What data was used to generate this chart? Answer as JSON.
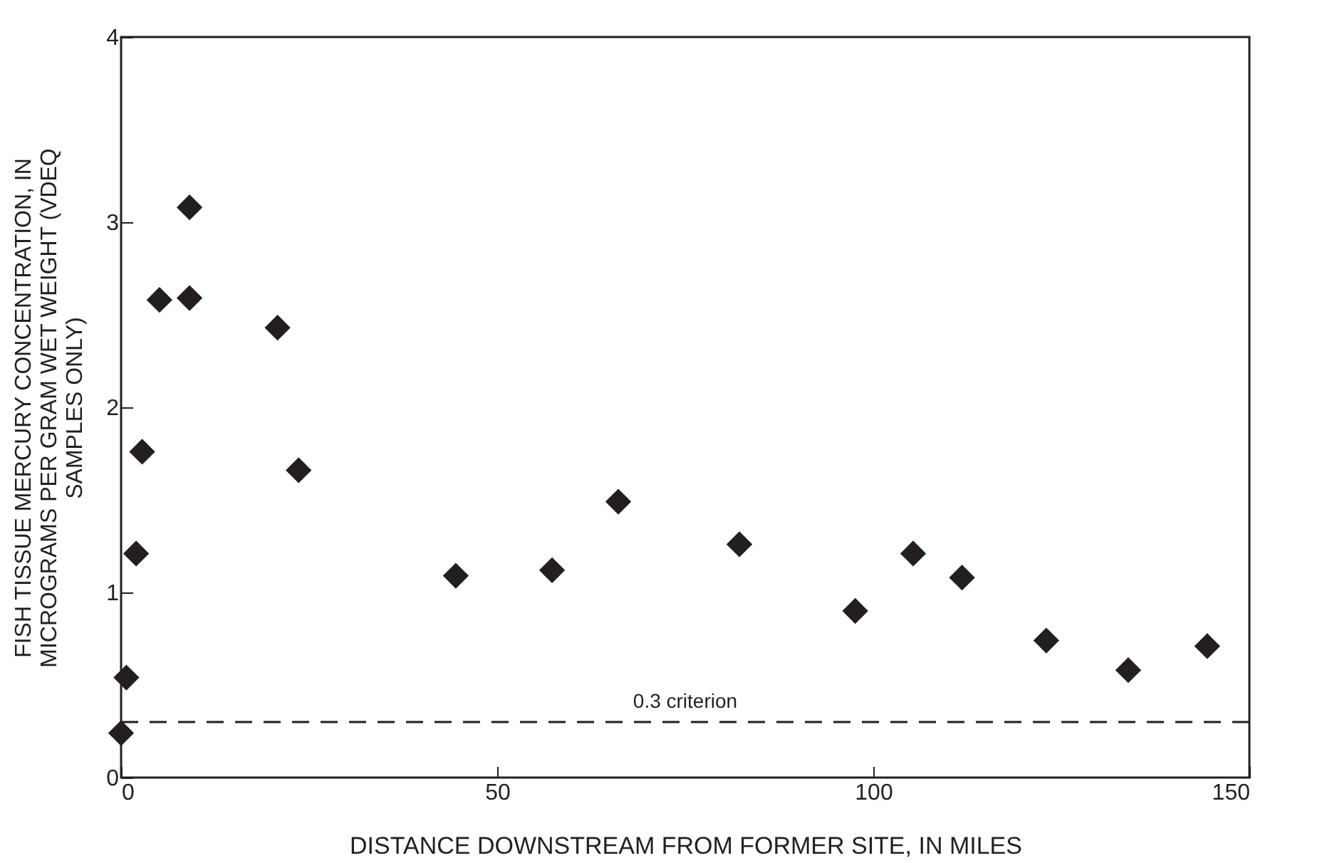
{
  "chart_data": {
    "type": "scatter",
    "xlabel": "DISTANCE DOWNSTREAM FROM FORMER SITE, IN MILES",
    "ylabel": "FISH TISSUE MERCURY CONCENTRATION, IN MICROGRAMS PER GRAM WET WEIGHT (VDEQ SAMPLES ONLY)",
    "x": [
      0,
      0.7,
      2,
      2.8,
      5.1,
      9.1,
      9.1,
      20.8,
      23.6,
      44.5,
      57.3,
      66.1,
      82.2,
      97.6,
      105.3,
      111.8,
      123.0,
      133.9,
      144.4
    ],
    "series": [
      {
        "color": "#231f20",
        "values": [
          0.24,
          0.54,
          1.21,
          1.76,
          2.58,
          3.08,
          2.59,
          2.43,
          1.66,
          1.09,
          1.12,
          1.49,
          1.26,
          0.9,
          1.21,
          1.08,
          0.74,
          0.58,
          0.71
        ]
      }
    ],
    "marker": "diamond",
    "xlim": [
      0,
      150
    ],
    "xticks": [
      0,
      50,
      100,
      150
    ],
    "ylim": [
      0,
      4
    ],
    "yticks": [
      0,
      1,
      2,
      3,
      4
    ],
    "ref_lines": [
      {
        "axis": "y",
        "value": 0.3,
        "label": "0.3 criterion",
        "line_style": "dashed"
      }
    ]
  }
}
